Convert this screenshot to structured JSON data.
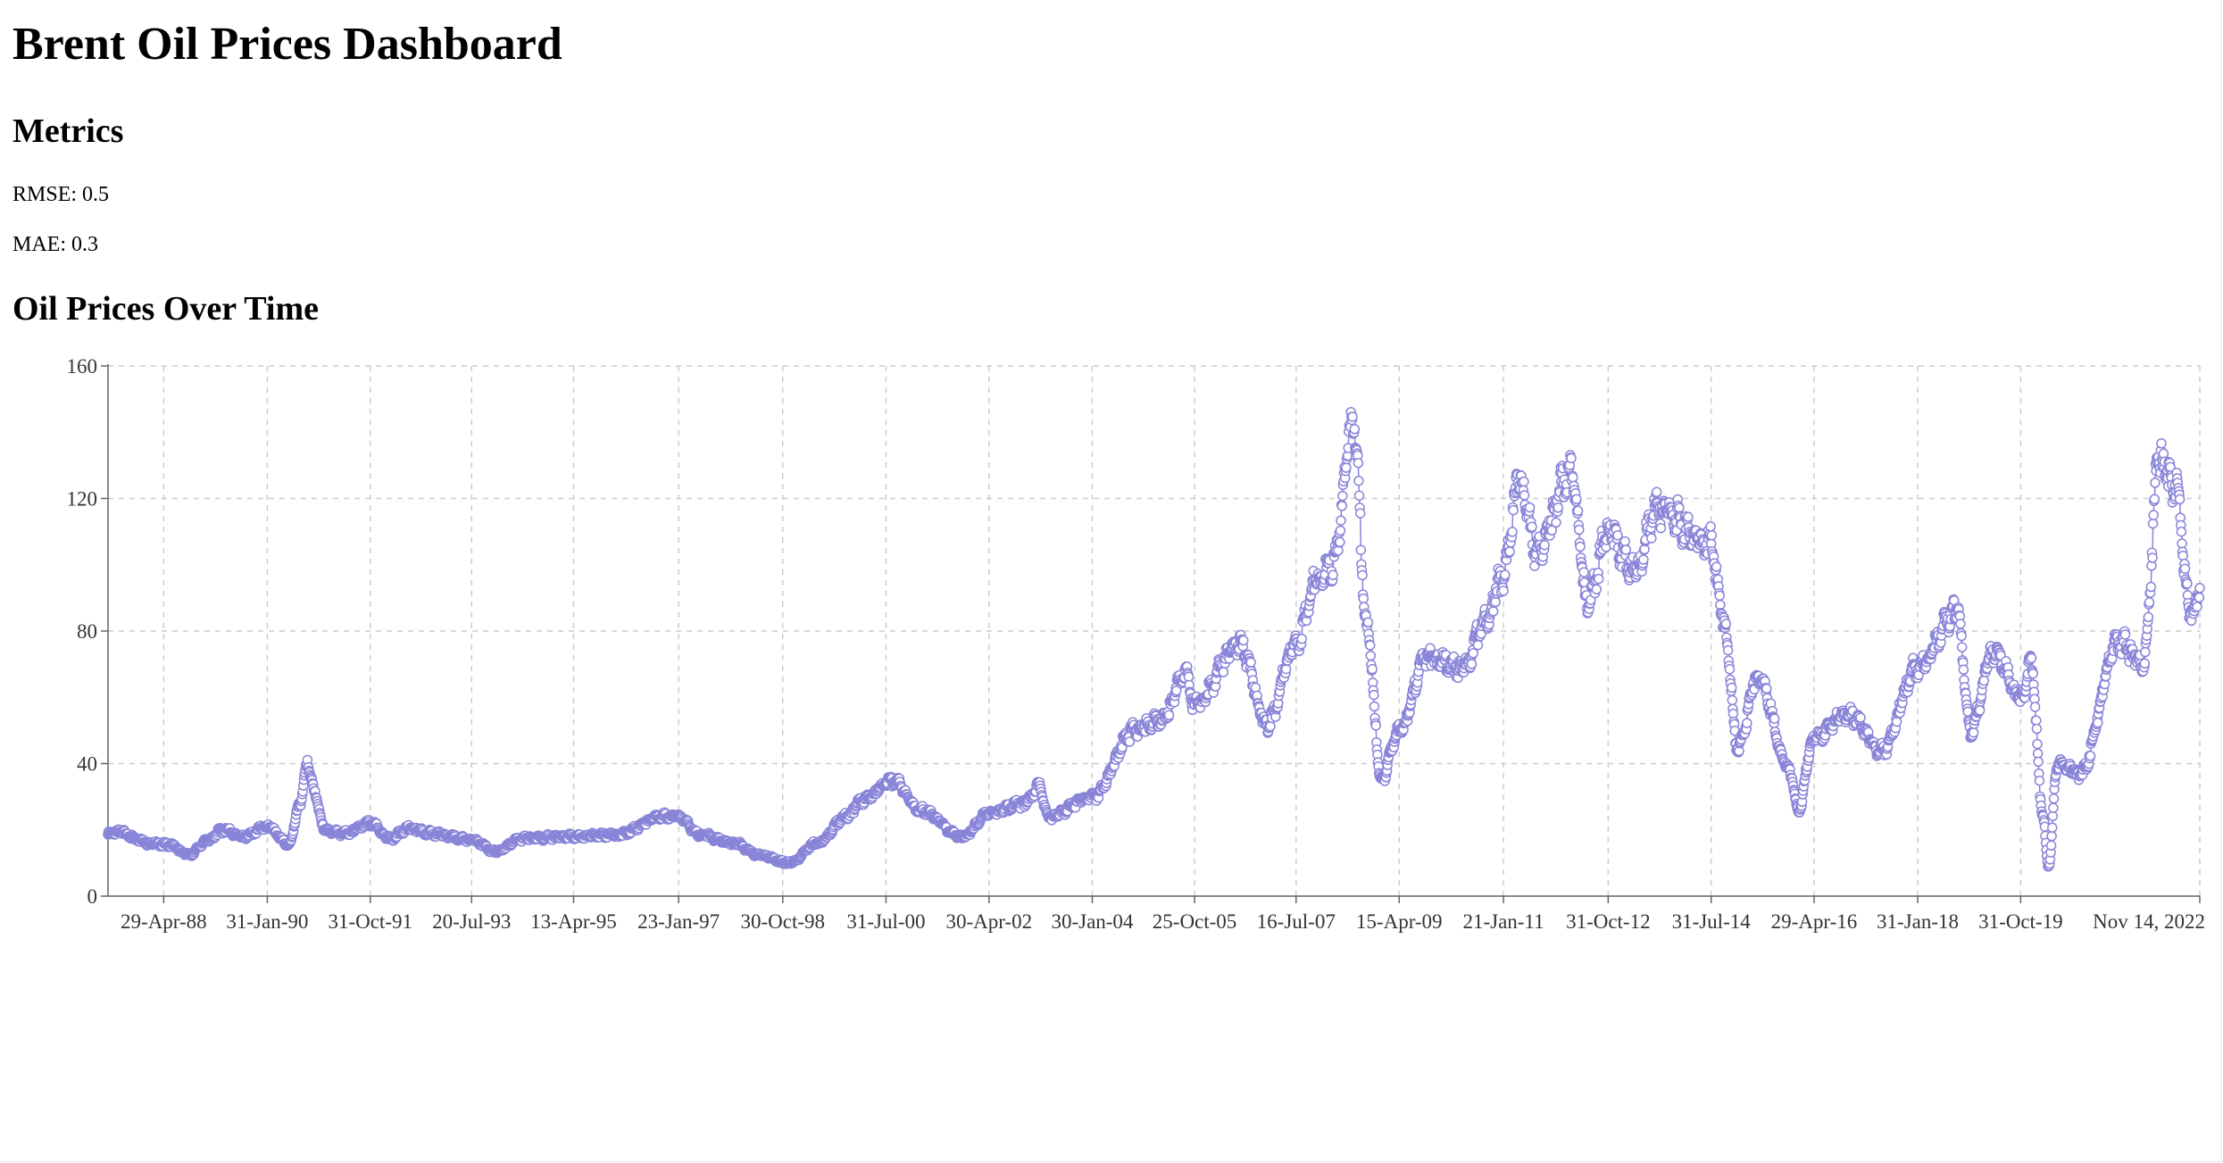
{
  "header": {
    "title": "Brent Oil Prices Dashboard"
  },
  "metrics": {
    "heading": "Metrics",
    "rmse_label": "RMSE: 0.5",
    "mae_label": "MAE: 0.3"
  },
  "chart_section": {
    "heading": "Oil Prices Over Time"
  },
  "colors": {
    "series": "#8884d8",
    "grid": "#cccccc",
    "axis": "#666666"
  },
  "chart_data": {
    "type": "line",
    "title": "Oil Prices Over Time",
    "xlabel": "",
    "ylabel": "",
    "ylim": [
      0,
      160
    ],
    "yticks": [
      0,
      40,
      80,
      120,
      160
    ],
    "xlim": [
      "1987-05-20",
      "2022-11-14"
    ],
    "grid": true,
    "legend": "none",
    "markers": "open-circle",
    "xtick_labels": [
      {
        "label": "29-Apr-88",
        "date": "1988-04-29"
      },
      {
        "label": "31-Jan-90",
        "date": "1990-01-31"
      },
      {
        "label": "31-Oct-91",
        "date": "1991-10-31"
      },
      {
        "label": "20-Jul-93",
        "date": "1993-07-20"
      },
      {
        "label": "13-Apr-95",
        "date": "1995-04-13"
      },
      {
        "label": "23-Jan-97",
        "date": "1997-01-23"
      },
      {
        "label": "30-Oct-98",
        "date": "1998-10-30"
      },
      {
        "label": "31-Jul-00",
        "date": "2000-07-31"
      },
      {
        "label": "30-Apr-02",
        "date": "2002-04-30"
      },
      {
        "label": "30-Jan-04",
        "date": "2004-01-30"
      },
      {
        "label": "25-Oct-05",
        "date": "2005-10-25"
      },
      {
        "label": "16-Jul-07",
        "date": "2007-07-16"
      },
      {
        "label": "15-Apr-09",
        "date": "2009-04-15"
      },
      {
        "label": "21-Jan-11",
        "date": "2011-01-21"
      },
      {
        "label": "31-Oct-12",
        "date": "2012-10-31"
      },
      {
        "label": "31-Jul-14",
        "date": "2014-07-31"
      },
      {
        "label": "29-Apr-16",
        "date": "2016-04-29"
      },
      {
        "label": "31-Jan-18",
        "date": "2018-01-31"
      },
      {
        "label": "31-Oct-19",
        "date": "2019-10-31"
      },
      {
        "label": "Nov 14, 2022",
        "date": "2022-11-14"
      }
    ],
    "series": [
      {
        "values": [
          [
            "1987-05-20",
            18.6
          ],
          [
            "1987-08-01",
            19.5
          ],
          [
            "1987-11-01",
            17.5
          ],
          [
            "1988-02-01",
            16.0
          ],
          [
            "1988-06-01",
            15.5
          ],
          [
            "1988-10-01",
            12.5
          ],
          [
            "1989-02-01",
            17.0
          ],
          [
            "1989-05-01",
            20.0
          ],
          [
            "1989-09-01",
            18.0
          ],
          [
            "1990-01-31",
            21.0
          ],
          [
            "1990-06-15",
            15.5
          ],
          [
            "1990-08-20",
            28.0
          ],
          [
            "1990-10-10",
            40.0
          ],
          [
            "1990-11-20",
            31.0
          ],
          [
            "1991-01-20",
            20.0
          ],
          [
            "1991-06-01",
            19.0
          ],
          [
            "1991-10-31",
            22.0
          ],
          [
            "1992-03-01",
            17.5
          ],
          [
            "1992-07-01",
            20.5
          ],
          [
            "1992-11-01",
            19.0
          ],
          [
            "1993-07-20",
            17.0
          ],
          [
            "1993-12-15",
            13.5
          ],
          [
            "1994-06-01",
            17.5
          ],
          [
            "1995-04-13",
            18.0
          ],
          [
            "1996-01-01",
            18.5
          ],
          [
            "1996-10-15",
            24.0
          ],
          [
            "1997-01-23",
            24.0
          ],
          [
            "1997-06-01",
            18.5
          ],
          [
            "1998-01-01",
            16.0
          ],
          [
            "1998-06-01",
            12.5
          ],
          [
            "1998-12-10",
            10.0
          ],
          [
            "1999-06-01",
            16.0
          ],
          [
            "1999-12-01",
            24.0
          ],
          [
            "2000-03-01",
            29.0
          ],
          [
            "2000-09-15",
            35.0
          ],
          [
            "2001-03-01",
            26.0
          ],
          [
            "2001-11-15",
            18.0
          ],
          [
            "2002-04-30",
            25.0
          ],
          [
            "2002-12-01",
            28.0
          ],
          [
            "2003-03-10",
            33.0
          ],
          [
            "2003-05-01",
            24.0
          ],
          [
            "2004-01-30",
            30.0
          ],
          [
            "2004-10-20",
            50.0
          ],
          [
            "2005-04-01",
            53.0
          ],
          [
            "2005-08-30",
            67.0
          ],
          [
            "2005-10-25",
            58.0
          ],
          [
            "2006-08-01",
            76.0
          ],
          [
            "2007-01-18",
            52.0
          ],
          [
            "2007-07-16",
            76.0
          ],
          [
            "2007-11-20",
            95.0
          ],
          [
            "2008-03-01",
            100.0
          ],
          [
            "2008-07-03",
            143.0
          ],
          [
            "2008-10-01",
            80.0
          ],
          [
            "2008-12-24",
            35.0
          ],
          [
            "2009-04-15",
            50.0
          ],
          [
            "2009-10-01",
            72.0
          ],
          [
            "2010-05-20",
            69.0
          ],
          [
            "2010-10-01",
            83.0
          ],
          [
            "2011-01-21",
            97.0
          ],
          [
            "2011-04-28",
            126.0
          ],
          [
            "2011-08-15",
            104.0
          ],
          [
            "2012-03-13",
            128.0
          ],
          [
            "2012-06-25",
            89.0
          ],
          [
            "2012-10-31",
            110.0
          ],
          [
            "2013-04-15",
            98.0
          ],
          [
            "2013-08-28",
            117.0
          ],
          [
            "2014-07-31",
            106.0
          ],
          [
            "2014-10-15",
            83.0
          ],
          [
            "2015-01-13",
            45.0
          ],
          [
            "2015-05-15",
            66.0
          ],
          [
            "2015-12-01",
            38.0
          ],
          [
            "2016-01-20",
            26.0
          ],
          [
            "2016-04-29",
            48.0
          ],
          [
            "2016-12-01",
            55.0
          ],
          [
            "2017-06-21",
            44.0
          ],
          [
            "2018-01-31",
            69.0
          ],
          [
            "2018-10-03",
            86.0
          ],
          [
            "2018-12-24",
            50.0
          ],
          [
            "2019-05-15",
            74.0
          ],
          [
            "2019-10-31",
            60.0
          ],
          [
            "2020-01-06",
            70.0
          ],
          [
            "2020-03-15",
            25.0
          ],
          [
            "2020-04-21",
            9.0
          ],
          [
            "2020-06-15",
            40.0
          ],
          [
            "2020-11-01",
            37.0
          ],
          [
            "2021-07-01",
            77.0
          ],
          [
            "2021-12-01",
            70.0
          ],
          [
            "2022-03-08",
            133.0
          ],
          [
            "2022-06-14",
            124.0
          ],
          [
            "2022-09-26",
            84.0
          ],
          [
            "2022-11-14",
            93.0
          ]
        ]
      }
    ]
  }
}
